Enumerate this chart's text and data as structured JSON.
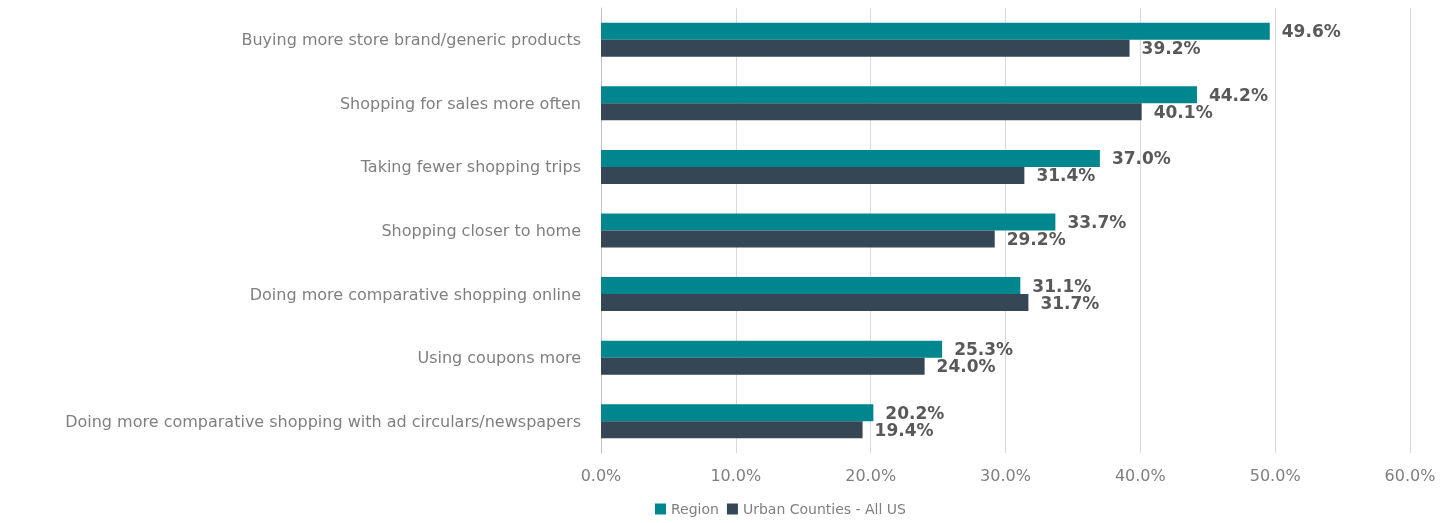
{
  "chart_data": {
    "type": "bar",
    "orientation": "horizontal",
    "categories": [
      "Buying more store brand/generic products",
      "Shopping for sales more often",
      "Taking fewer shopping trips",
      "Shopping closer to home",
      "Doing more comparative shopping online",
      "Using coupons more",
      "Doing more comparative shopping with ad circulars/newspapers"
    ],
    "series": [
      {
        "name": "Region",
        "color": "#00868f",
        "values": [
          49.6,
          44.2,
          37.0,
          33.7,
          31.1,
          25.3,
          20.2
        ],
        "value_labels": [
          "49.6%",
          "44.2%",
          "37.0%",
          "33.7%",
          "31.1%",
          "25.3%",
          "20.2%"
        ]
      },
      {
        "name": "Urban Counties - All US",
        "color": "#354655",
        "values": [
          39.2,
          40.1,
          31.4,
          29.2,
          31.7,
          24.0,
          19.4
        ],
        "value_labels": [
          "39.2%",
          "40.1%",
          "31.4%",
          "29.2%",
          "31.7%",
          "24.0%",
          "19.4%"
        ]
      }
    ],
    "xlim": [
      0,
      60
    ],
    "xticks": [
      {
        "value": 0,
        "label": "0.0%"
      },
      {
        "value": 10,
        "label": "10.0%"
      },
      {
        "value": 20,
        "label": "20.0%"
      },
      {
        "value": 30,
        "label": "30.0%"
      },
      {
        "value": 40,
        "label": "40.0%"
      },
      {
        "value": 50,
        "label": "50.0%"
      },
      {
        "value": 60,
        "label": "60.0%"
      }
    ],
    "grid": "x",
    "legend": "bottom"
  }
}
